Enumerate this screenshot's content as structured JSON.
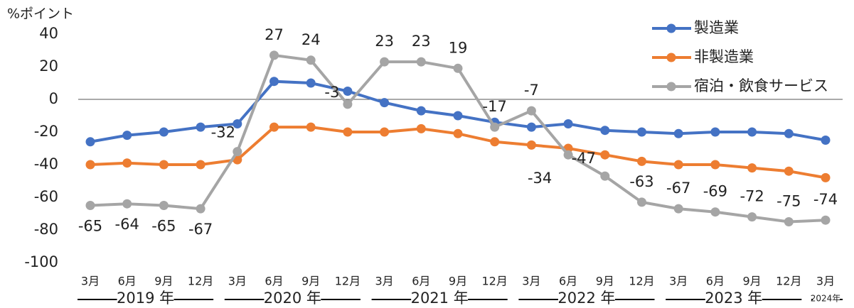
{
  "chart_data": {
    "type": "line",
    "y_axis_label": "%ポイント",
    "categories": [
      "3月",
      "6月",
      "9月",
      "12月",
      "3月",
      "6月",
      "9月",
      "12月",
      "3月",
      "6月",
      "9月",
      "12月",
      "3月",
      "6月",
      "9月",
      "12月",
      "3月",
      "6月",
      "9月",
      "12月",
      "3月"
    ],
    "x_groups": [
      "2019 年",
      "2020 年",
      "2021 年",
      "2022 年",
      "2023 年",
      "2024年"
    ],
    "series": [
      {
        "name": "製造業",
        "color": "#4472c4",
        "values": [
          -26,
          -22,
          -20,
          -17,
          -15,
          11,
          10,
          5,
          -2,
          -7,
          -10,
          -14,
          -17,
          -15,
          -19,
          -20,
          -21,
          -20,
          -20,
          -21,
          -25
        ]
      },
      {
        "name": "非製造業",
        "color": "#ed7d31",
        "values": [
          -40,
          -39,
          -40,
          -40,
          -37,
          -17,
          -17,
          -20,
          -20,
          -18,
          -21,
          -26,
          -28,
          -30,
          -34,
          -38,
          -40,
          -40,
          -42,
          -44,
          -48
        ]
      },
      {
        "name": "宿泊・飲食サービス",
        "color": "#a5a5a5",
        "values": [
          -65,
          -64,
          -65,
          -67,
          -32,
          27,
          24,
          -3,
          23,
          23,
          19,
          -17,
          -7,
          -34,
          -47,
          -63,
          -67,
          -69,
          -72,
          -75,
          -74
        ],
        "show_labels": true
      }
    ],
    "ylim": [
      -100,
      40
    ],
    "yticks": [
      -100,
      -80,
      -60,
      -40,
      -20,
      0,
      20,
      40
    ],
    "grid": false,
    "legend": "upper right"
  }
}
